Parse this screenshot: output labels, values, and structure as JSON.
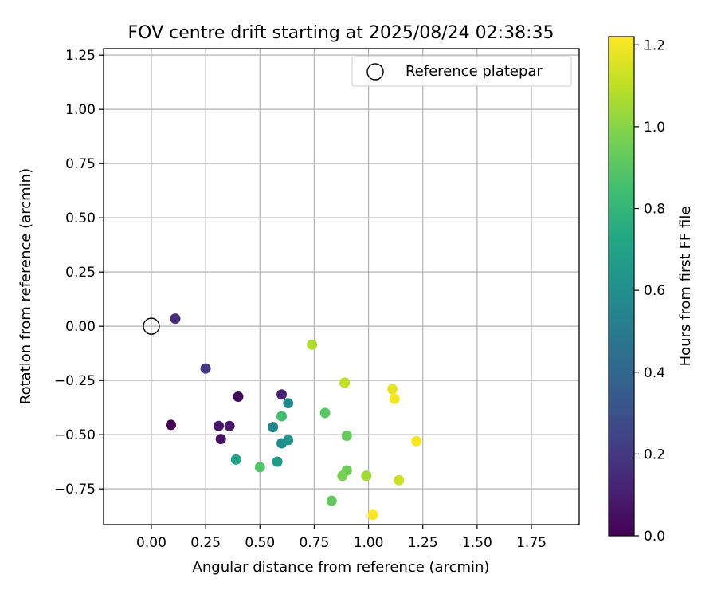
{
  "chart_data": {
    "type": "scatter",
    "title": "FOV centre drift starting at 2025/08/24 02:38:35",
    "xlabel": "Angular distance from reference (arcmin)",
    "ylabel": "Rotation from reference (arcmin)",
    "xlim": [
      -0.22,
      1.97
    ],
    "ylim": [
      -0.915,
      1.28
    ],
    "xticks": [
      0.0,
      0.25,
      0.5,
      0.75,
      1.0,
      1.25,
      1.5,
      1.75
    ],
    "xtick_labels": [
      "0.00",
      "0.25",
      "0.50",
      "0.75",
      "1.00",
      "1.25",
      "1.50",
      "1.75"
    ],
    "yticks": [
      -0.75,
      -0.5,
      -0.25,
      0.0,
      0.25,
      0.5,
      0.75,
      1.0,
      1.25
    ],
    "ytick_labels": [
      "−0.75",
      "−0.50",
      "−0.25",
      "0.00",
      "0.25",
      "0.50",
      "0.75",
      "1.00",
      "1.25"
    ],
    "grid": true,
    "legend": {
      "placement": "top-right",
      "entries": [
        "Reference platepar"
      ]
    },
    "reference_point": {
      "x": 0.0,
      "y": 0.0
    },
    "colorbar": {
      "label": "Hours from first FF file",
      "colormap": "viridis",
      "range": [
        0.0,
        1.22
      ],
      "ticks": [
        0.0,
        0.2,
        0.4,
        0.6,
        0.8,
        1.0,
        1.2
      ],
      "tick_labels": [
        "0.0",
        "0.2",
        "0.4",
        "0.6",
        "0.8",
        "1.0",
        "1.2"
      ]
    },
    "points": [
      {
        "x": 0.09,
        "y": -0.455,
        "c": 0.0
      },
      {
        "x": 0.4,
        "y": -0.325,
        "c": 0.02
      },
      {
        "x": 0.32,
        "y": -0.52,
        "c": 0.05
      },
      {
        "x": 0.31,
        "y": -0.46,
        "c": 0.07
      },
      {
        "x": 0.36,
        "y": -0.46,
        "c": 0.09
      },
      {
        "x": 0.6,
        "y": -0.315,
        "c": 0.12
      },
      {
        "x": 0.11,
        "y": 0.035,
        "c": 0.15
      },
      {
        "x": 0.25,
        "y": -0.195,
        "c": 0.2
      },
      {
        "x": 0.56,
        "y": -0.465,
        "c": 0.55
      },
      {
        "x": 0.63,
        "y": -0.355,
        "c": 0.57
      },
      {
        "x": 0.6,
        "y": -0.54,
        "c": 0.6
      },
      {
        "x": 0.63,
        "y": -0.525,
        "c": 0.63
      },
      {
        "x": 0.58,
        "y": -0.625,
        "c": 0.66
      },
      {
        "x": 0.39,
        "y": -0.615,
        "c": 0.7
      },
      {
        "x": 0.6,
        "y": -0.415,
        "c": 0.85
      },
      {
        "x": 0.5,
        "y": -0.65,
        "c": 0.88
      },
      {
        "x": 0.8,
        "y": -0.4,
        "c": 0.9
      },
      {
        "x": 0.83,
        "y": -0.805,
        "c": 0.92
      },
      {
        "x": 0.9,
        "y": -0.505,
        "c": 0.93
      },
      {
        "x": 0.9,
        "y": -0.665,
        "c": 0.95
      },
      {
        "x": 0.88,
        "y": -0.69,
        "c": 0.97
      },
      {
        "x": 0.99,
        "y": -0.69,
        "c": 1.05
      },
      {
        "x": 0.74,
        "y": -0.085,
        "c": 1.07
      },
      {
        "x": 0.89,
        "y": -0.26,
        "c": 1.1
      },
      {
        "x": 1.14,
        "y": -0.71,
        "c": 1.12
      },
      {
        "x": 1.11,
        "y": -0.29,
        "c": 1.18
      },
      {
        "x": 1.12,
        "y": -0.335,
        "c": 1.2
      },
      {
        "x": 1.22,
        "y": -0.53,
        "c": 1.21
      },
      {
        "x": 1.02,
        "y": -0.87,
        "c": 1.22
      }
    ]
  }
}
